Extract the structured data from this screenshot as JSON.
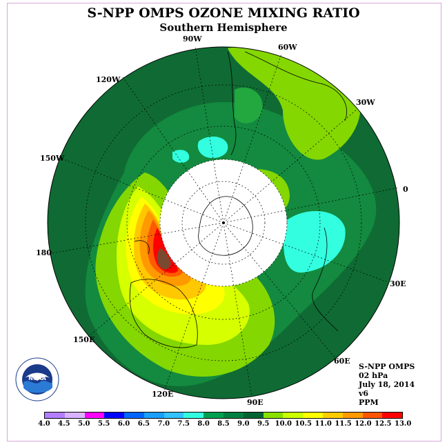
{
  "title": "S-NPP OMPS OZONE MIXING RATIO",
  "subtitle": "Southern Hemisphere",
  "longitude_labels": {
    "w90": "90W",
    "w60": "60W",
    "w120": "120W",
    "w30": "30W",
    "w150": "150W",
    "e0": "0",
    "e180": "180",
    "e30": "30E",
    "e150": "150E",
    "e60": "60E",
    "e120": "120E",
    "e90": "90E"
  },
  "info": {
    "instrument": "S-NPP OMPS",
    "level": "02 hPa",
    "date": "July 18, 2014",
    "version": "v6",
    "units": "PPM"
  },
  "logo_text": "NOAA",
  "colorbar": {
    "ticks": [
      "4.0",
      "4.5",
      "5.0",
      "5.5",
      "6.0",
      "6.5",
      "7.0",
      "7.5",
      "8.0",
      "8.5",
      "9.0",
      "9.5",
      "10.0",
      "10.5",
      "11.0",
      "11.5",
      "12.0",
      "12.5",
      "13.0"
    ],
    "colors": [
      "#b37fff",
      "#d9b3ff",
      "#ff00ff",
      "#0000ff",
      "#0066ff",
      "#1a9fff",
      "#33c3ff",
      "#33ffe0",
      "#00a050",
      "#008040",
      "#006432",
      "#88e000",
      "#ccff00",
      "#ffff00",
      "#ffcc00",
      "#ff9900",
      "#ff5500",
      "#ff0000",
      "#7a4a30"
    ]
  },
  "colors": {
    "background_field": "#0f6b33",
    "medium_green": "#138a3f",
    "light_green": "#22a83f",
    "lime": "#84d700",
    "yellow_green": "#d6ff00",
    "yellow": "#ffff00",
    "orange_light": "#ffc800",
    "orange": "#ff9900",
    "orange_red": "#ff5a00",
    "red": "#ff0000",
    "brown": "#7a4a30",
    "cyan": "#33ffe0",
    "polar_night": "#ffffff"
  }
}
